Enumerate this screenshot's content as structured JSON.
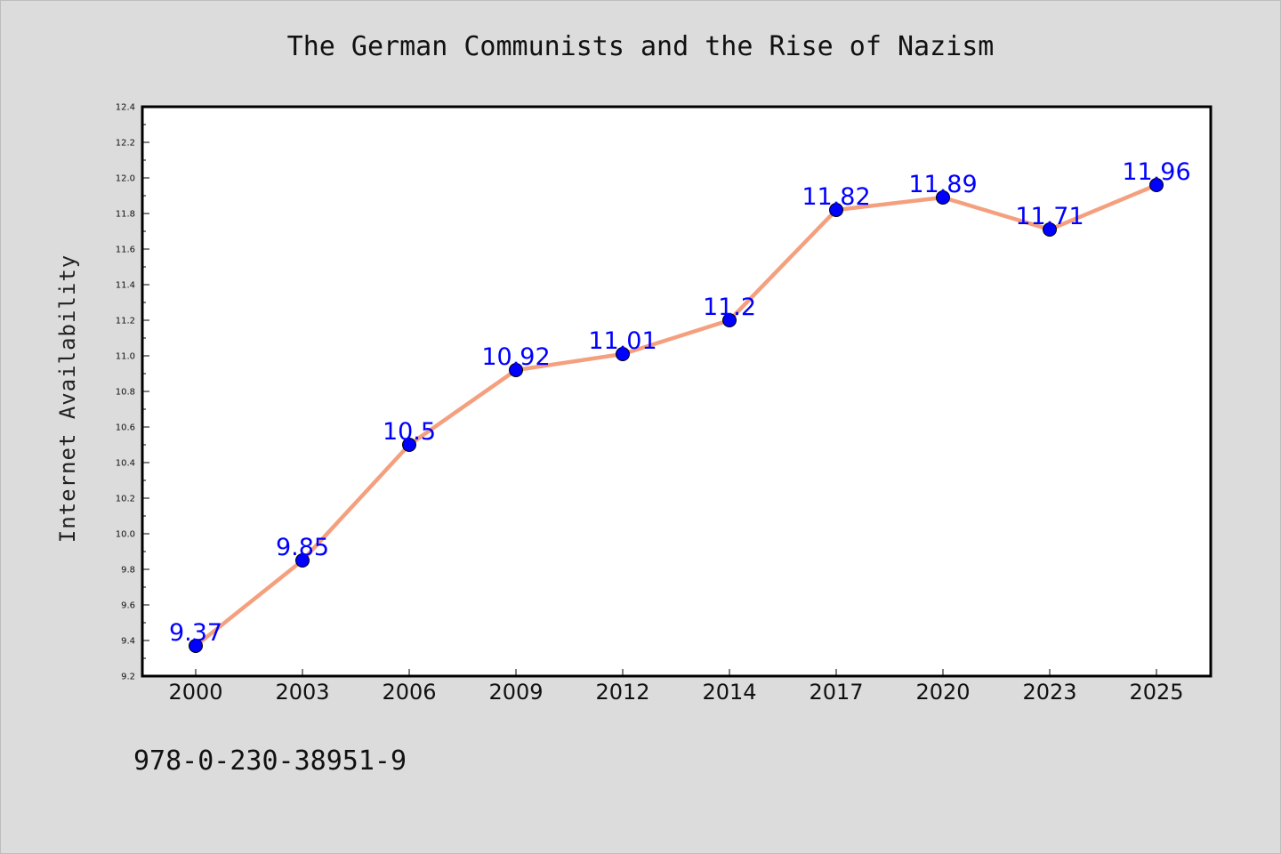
{
  "chart_data": {
    "type": "line",
    "title": "The German Communists and the Rise of Nazism",
    "xlabel": "",
    "ylabel": "Internet Availability",
    "categories": [
      "2000",
      "2003",
      "2006",
      "2009",
      "2012",
      "2014",
      "2017",
      "2020",
      "2023",
      "2025"
    ],
    "series": [
      {
        "values": [
          9.37,
          9.85,
          10.5,
          10.92,
          11.01,
          11.2,
          11.82,
          11.89,
          11.71,
          11.96
        ],
        "data_labels": [
          "9.37",
          "9.85",
          "10.5",
          "10.92",
          "11.01",
          "11.2",
          "11.82",
          "11.89",
          "11.71",
          "11.96"
        ],
        "line_color": "#f4a07f",
        "marker_color": "#0000ff"
      }
    ],
    "ylim": [
      9.2,
      12.4
    ],
    "yticks": [
      "9.2",
      "9.4",
      "9.6",
      "9.8",
      "10.0",
      "10.2",
      "10.4",
      "10.6",
      "10.8",
      "11.0",
      "11.2",
      "11.4",
      "11.6",
      "11.8",
      "12.0",
      "12.2",
      "12.4"
    ],
    "grid": false,
    "legend": "none"
  },
  "footer_text": "978-0-230-38951-9",
  "colors": {
    "background": "#dcdcdc",
    "plot_background": "#ffffff",
    "axis": "#000000"
  }
}
